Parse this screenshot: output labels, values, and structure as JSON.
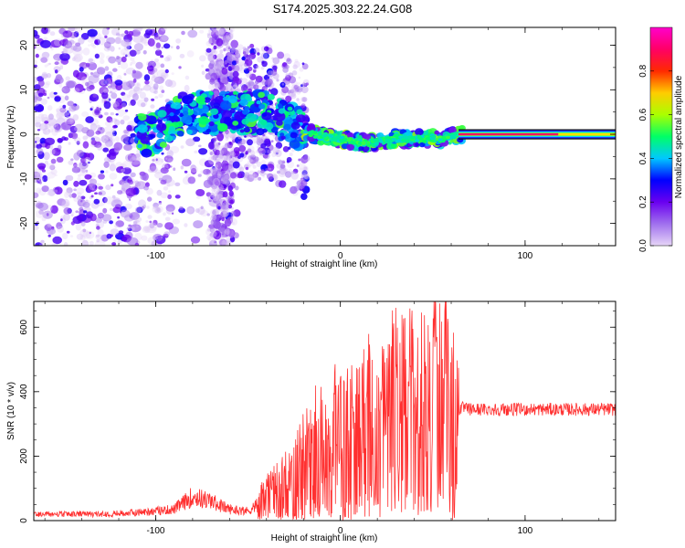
{
  "title": "S174.2025.303.22.24.G08",
  "chart_data": [
    {
      "type": "heatmap",
      "name": "spectrogram",
      "xlabel": "Height of straight line (km)",
      "ylabel": "Frequency (Hz)",
      "xlim": [
        -166,
        149
      ],
      "ylim": [
        -25,
        24
      ],
      "xticks": [
        -100,
        0,
        100
      ],
      "xtick_labels": [
        "-100",
        "0",
        "100"
      ],
      "yticks": [
        20,
        10,
        0,
        -10,
        -20
      ],
      "ytick_labels": [
        "20",
        "10",
        "0",
        "-10",
        "-20"
      ],
      "colorbar": {
        "label": "Normalized spectral amplitude",
        "range": [
          0,
          1
        ],
        "ticks": [
          0.0,
          0.2,
          0.4,
          0.6,
          0.8
        ],
        "tick_labels": [
          "0.0",
          "0.2",
          "0.4",
          "0.6",
          "0.8"
        ],
        "colormap": [
          "#e6d5f7",
          "#a070ee",
          "#6a00f0",
          "#0000ff",
          "#00c8ff",
          "#00ff66",
          "#aaff00",
          "#ffcc00",
          "#ff2a00",
          "#ff0066",
          "#ff00cc"
        ]
      },
      "ridge": [
        {
          "x": -100,
          "y": 0
        },
        {
          "x": -85,
          "y": 5
        },
        {
          "x": -60,
          "y": 5
        },
        {
          "x": -42,
          "y": 5
        },
        {
          "x": -30,
          "y": 3
        },
        {
          "x": -15,
          "y": 0
        },
        {
          "x": 0,
          "y": -1
        },
        {
          "x": 15,
          "y": -2
        },
        {
          "x": 30,
          "y": -1
        },
        {
          "x": 45,
          "y": -1
        },
        {
          "x": 55,
          "y": -1
        },
        {
          "x": 64,
          "y": 0
        }
      ],
      "band": {
        "x_start": 64,
        "x_end": 149,
        "y": 0,
        "amplitude": 0.9
      }
    },
    {
      "type": "line",
      "name": "snr",
      "xlabel": "Height of straight line (km)",
      "ylabel": "SNR (10 * v/v)",
      "xlim": [
        -166,
        149
      ],
      "ylim": [
        0,
        680
      ],
      "xticks": [
        -100,
        0,
        100
      ],
      "xtick_labels": [
        "-100",
        "0",
        "100"
      ],
      "yticks": [
        0,
        200,
        400,
        600
      ],
      "ytick_labels": [
        "0",
        "200",
        "400",
        "600"
      ],
      "series": [
        {
          "name": "SNR",
          "color": "#ff3030",
          "x": [
            -166,
            -150,
            -130,
            -110,
            -90,
            -80,
            -70,
            -60,
            -50,
            -40,
            -30,
            -20,
            -10,
            0,
            10,
            20,
            30,
            40,
            50,
            55,
            60,
            65,
            70,
            90,
            110,
            130,
            149
          ],
          "y": [
            20,
            20,
            20,
            25,
            35,
            75,
            60,
            35,
            30,
            70,
            110,
            170,
            210,
            240,
            250,
            280,
            340,
            330,
            330,
            360,
            300,
            350,
            345,
            345,
            345,
            345,
            345
          ]
        }
      ]
    }
  ]
}
